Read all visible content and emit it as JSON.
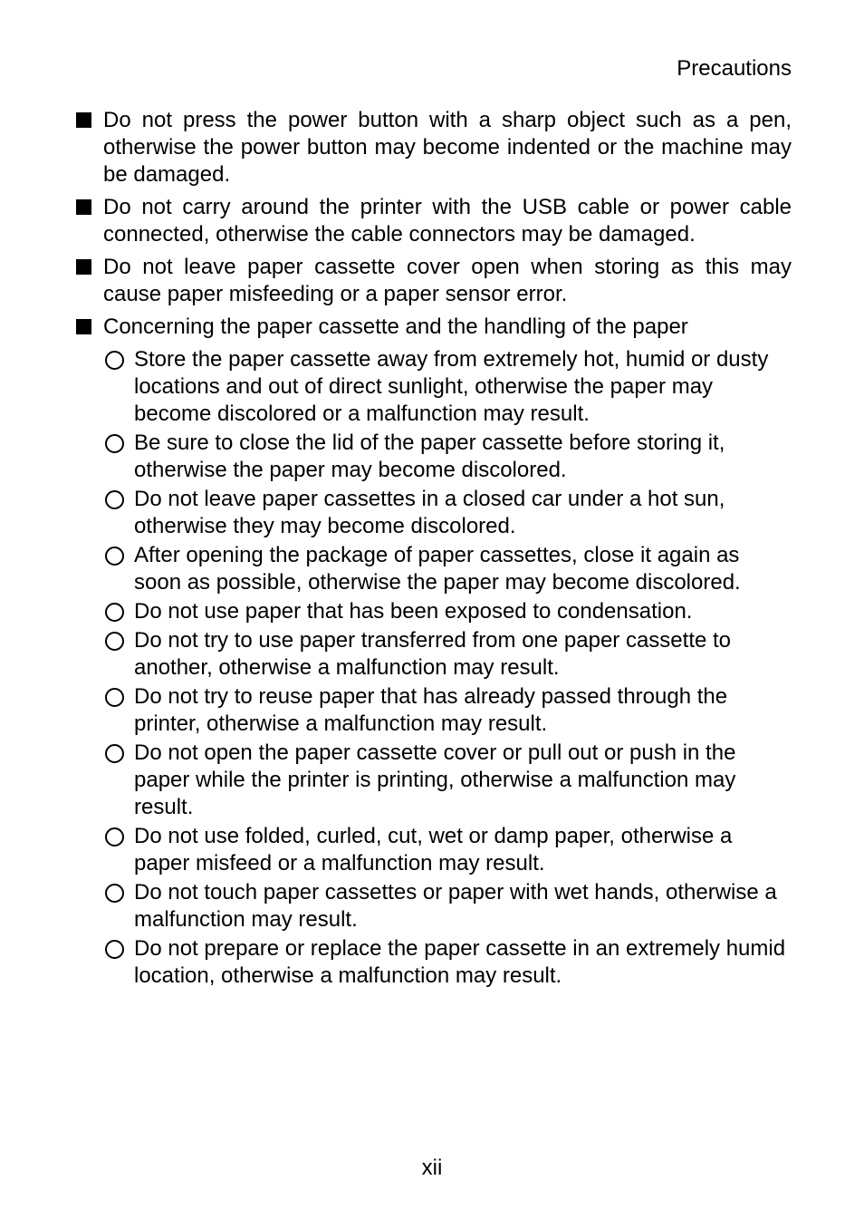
{
  "header": "Precautions",
  "colors": {
    "background": "#ffffff",
    "text": "#000000",
    "bullet_fill": "#000000",
    "circle_border": "#000000"
  },
  "typography": {
    "body_fontsize_pt": 18,
    "line_height": 1.25,
    "font_family": "Arial, Helvetica, sans-serif"
  },
  "items": [
    {
      "text": "Do not press the power button with a sharp object such as a pen, otherwise the power button may become indented or the machine may be damaged.",
      "subs": []
    },
    {
      "text": "Do not carry around the printer with the USB cable or power cable connected, otherwise the cable connectors may be damaged.",
      "subs": []
    },
    {
      "text": "Do not leave paper cassette cover open when storing as this may cause paper misfeeding or a paper sensor error.",
      "subs": []
    },
    {
      "text": "Concerning the paper cassette and the handling of the paper",
      "subs": [
        "Store the paper cassette away from extremely hot, humid or dusty locations and out of direct sunlight, otherwise the paper may become discolored or a malfunction may result.",
        "Be sure to close the lid of the paper cassette before storing it, otherwise the paper may become discolored.",
        "Do not leave paper cassettes in a closed car under a hot sun, otherwise they may become discolored.",
        "After opening the package of paper cassettes, close it again as soon as possible, otherwise the paper may become discolored.",
        "Do not use paper that has been exposed to condensation.",
        "Do not try to use paper transferred from one paper cassette to another, otherwise a malfunction may result.",
        "Do not try to reuse paper that has already passed through the printer, otherwise a malfunction may result.",
        "Do not open the paper cassette cover or pull out or push in the paper while the printer is printing, otherwise a malfunction may result.",
        "Do not use folded, curled, cut, wet or damp paper, otherwise a paper misfeed or a malfunction may result.",
        "Do not touch paper cassettes or paper with wet hands, otherwise a malfunction may result.",
        "Do not prepare or replace the paper cassette in an extremely humid location, otherwise a malfunction may result."
      ]
    }
  ],
  "page_number": "xii"
}
